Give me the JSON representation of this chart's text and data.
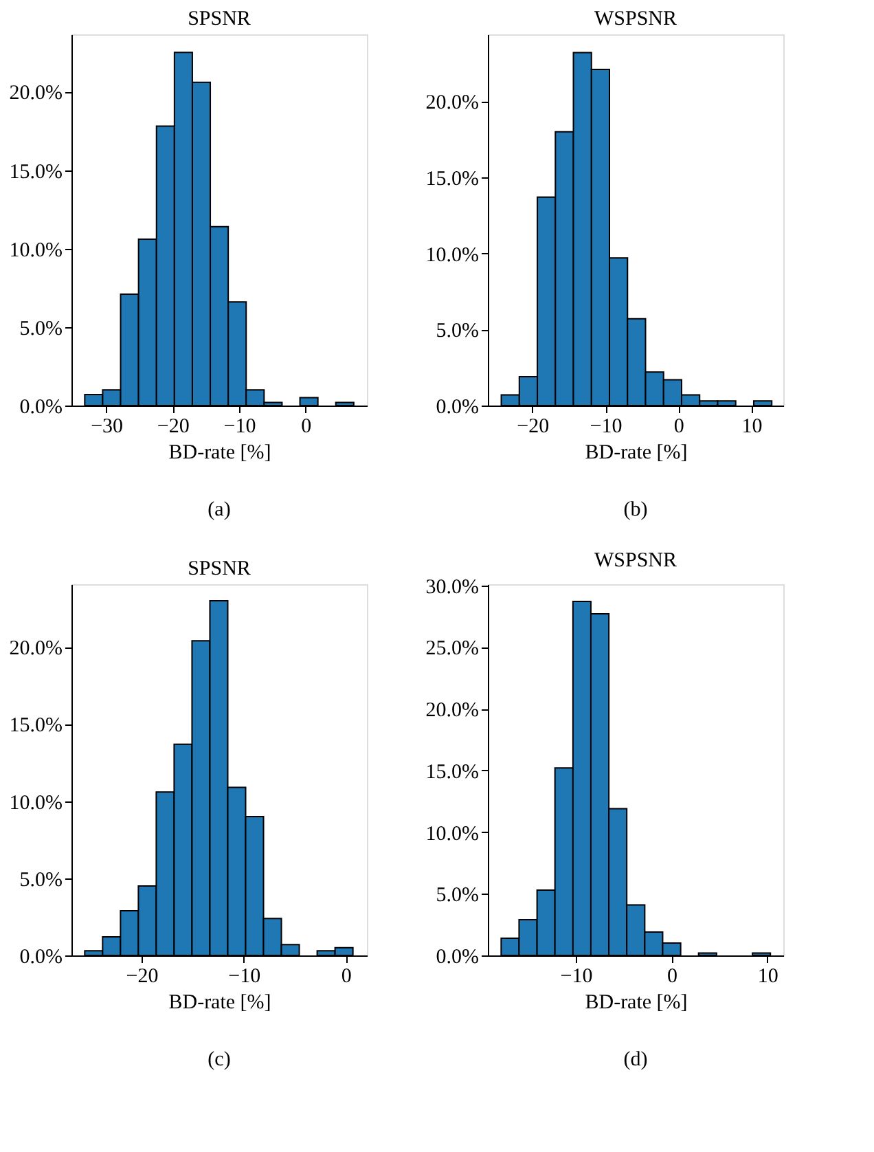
{
  "chart_data": [
    {
      "type": "histogram",
      "title": "SPSNR",
      "xlabel": "BD-rate [%]",
      "annotations": [
        "(a)"
      ],
      "color": "#1f77b4",
      "bins": [
        -33.24,
        -30.54,
        -27.84,
        -25.14,
        -22.44,
        -19.74,
        -17.04,
        -14.34,
        -11.64,
        -8.94,
        -6.24,
        -3.54,
        -0.84,
        1.86,
        4.56,
        7.26
      ],
      "values": [
        0.7,
        1.0,
        7.1,
        10.6,
        17.8,
        22.5,
        20.6,
        11.4,
        6.6,
        1.0,
        0.2,
        0,
        0.5,
        0,
        0.2
      ],
      "xlim": [
        -35.24,
        9.24
      ],
      "ylim": [
        0,
        23.65
      ],
      "xticks": [
        {
          "value": -30,
          "label": "−30"
        },
        {
          "value": -20,
          "label": "−20"
        },
        {
          "value": -10,
          "label": "−10"
        },
        0
      ],
      "yticks": [
        {
          "value": 0,
          "label": "0.0%"
        },
        {
          "value": 5,
          "label": "5.0%"
        },
        {
          "value": 10,
          "label": "10.0%"
        },
        {
          "value": 15,
          "label": "15.0%"
        },
        {
          "value": 20,
          "label": "20.0%"
        }
      ]
    },
    {
      "type": "histogram",
      "title": "WSPSNR",
      "xlabel": "BD-rate [%]",
      "annotations": [
        "(b)"
      ],
      "color": "#1f77b4",
      "bins": [
        -24.26,
        -21.79,
        -19.32,
        -16.85,
        -14.38,
        -11.91,
        -9.44,
        -6.97,
        -4.5,
        -2.03,
        0.44,
        2.91,
        5.38,
        7.85,
        10.32,
        12.79
      ],
      "values": [
        0.7,
        1.9,
        13.7,
        18.0,
        23.2,
        22.1,
        9.7,
        5.7,
        2.2,
        1.7,
        0.7,
        0.3,
        0.3,
        0,
        0.3
      ],
      "xlim": [
        -26.1,
        14.37
      ],
      "ylim": [
        0,
        24.4
      ],
      "xticks": [
        {
          "value": -20,
          "label": "−20"
        },
        {
          "value": -10,
          "label": "−10"
        },
        0,
        10
      ],
      "yticks": [
        {
          "value": 0,
          "label": "0.0%"
        },
        {
          "value": 5,
          "label": "5.0%"
        },
        {
          "value": 10,
          "label": "10.0%"
        },
        {
          "value": 15,
          "label": "15.0%"
        },
        {
          "value": 20,
          "label": "20.0%"
        }
      ]
    },
    {
      "type": "histogram",
      "title": "SPSNR",
      "xlabel": "BD-rate [%]",
      "annotations": [
        "(c)"
      ],
      "color": "#1f77b4",
      "bins": [
        -25.56,
        -23.81,
        -22.06,
        -20.31,
        -18.56,
        -16.81,
        -15.06,
        -13.31,
        -11.56,
        -9.81,
        -8.06,
        -6.31,
        -4.56,
        -2.81,
        -1.06,
        0.69
      ],
      "values": [
        0.3,
        1.2,
        2.9,
        4.5,
        10.6,
        13.7,
        20.4,
        23.0,
        10.9,
        9.0,
        2.4,
        0.7,
        0,
        0.3,
        0.5
      ],
      "xlim": [
        -26.86,
        2.06
      ],
      "ylim": [
        0,
        24.07
      ],
      "xticks": [
        {
          "value": -20,
          "label": "−20"
        },
        {
          "value": -10,
          "label": "−10"
        },
        0
      ],
      "yticks": [
        {
          "value": 0,
          "label": "0.0%"
        },
        {
          "value": 5,
          "label": "5.0%"
        },
        {
          "value": 10,
          "label": "10.0%"
        },
        {
          "value": 15,
          "label": "15.0%"
        },
        {
          "value": 20,
          "label": "20.0%"
        }
      ]
    },
    {
      "type": "histogram",
      "title": "WSPSNR",
      "xlabel": "BD-rate [%]",
      "annotations": [
        "(d)"
      ],
      "color": "#1f77b4",
      "bins": [
        -17.8,
        -15.93,
        -14.05,
        -12.18,
        -10.3,
        -8.43,
        -6.55,
        -4.68,
        -2.8,
        -0.93,
        0.95,
        2.82,
        4.7,
        6.57,
        8.45,
        10.32
      ],
      "values": [
        1.4,
        2.9,
        5.3,
        15.2,
        28.7,
        27.7,
        11.9,
        4.1,
        1.9,
        1.0,
        0,
        0.2,
        0,
        0,
        0.2
      ],
      "xlim": [
        -19.19,
        11.67
      ],
      "ylim": [
        0,
        30.1
      ],
      "xticks": [
        {
          "value": -10,
          "label": "−10"
        },
        0,
        10
      ],
      "yticks": [
        {
          "value": 0,
          "label": "0.0%"
        },
        {
          "value": 5,
          "label": "5.0%"
        },
        {
          "value": 10,
          "label": "10.0%"
        },
        {
          "value": 15,
          "label": "15.0%"
        },
        {
          "value": 20,
          "label": "20.0%"
        },
        {
          "value": 25,
          "label": "25.0%"
        },
        {
          "value": 30,
          "label": "30.0%"
        }
      ]
    }
  ]
}
